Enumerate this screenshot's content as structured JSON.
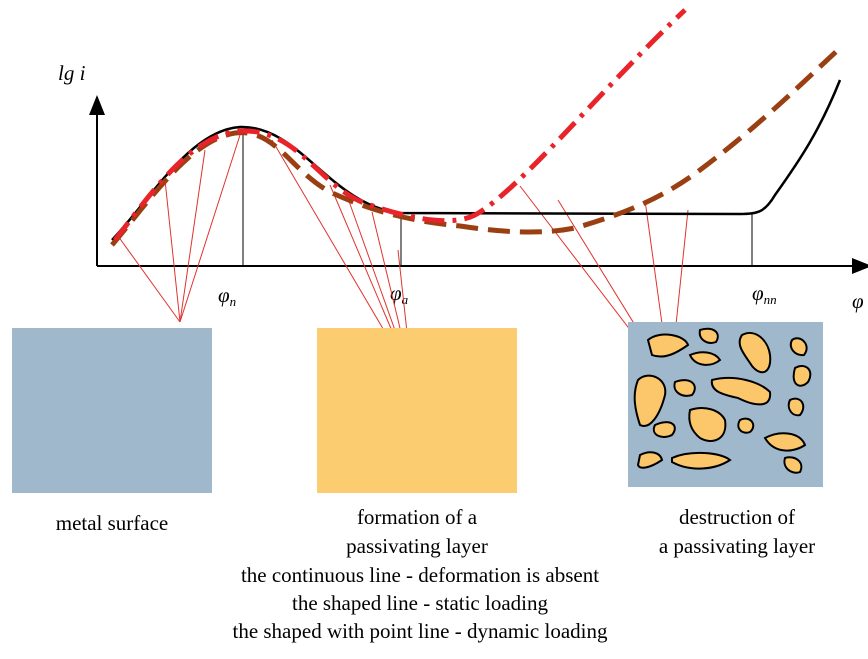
{
  "axis": {
    "y_label": "lg i",
    "x_label": "φ"
  },
  "markers": [
    {
      "symbol": "φ",
      "sub": "п"
    },
    {
      "symbol": "φ",
      "sub": "a"
    },
    {
      "symbol": "φ",
      "sub": "пп"
    }
  ],
  "panels": [
    {
      "caption": [
        "metal surface"
      ]
    },
    {
      "caption": [
        "formation of a",
        "passivating layer"
      ]
    },
    {
      "caption": [
        "destruction of",
        "a passivating layer"
      ]
    }
  ],
  "legend": [
    "the continuous line - deformation is absent",
    "the shaped line - static loading",
    "the shaped with point line - dynamic loading"
  ]
}
